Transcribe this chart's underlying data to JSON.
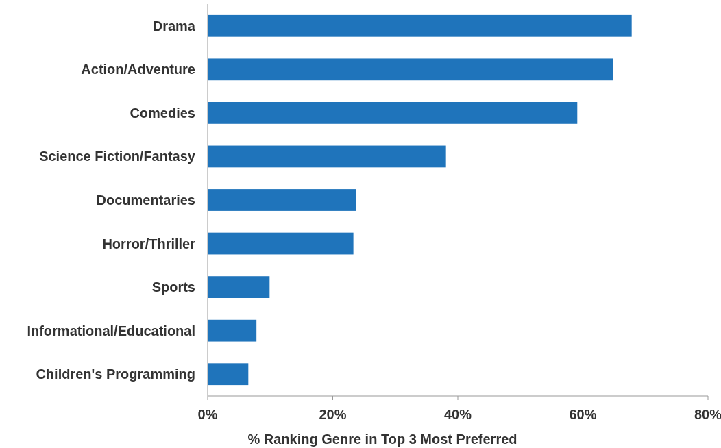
{
  "chart_data": {
    "type": "bar",
    "orientation": "horizontal",
    "xlabel": "% Ranking Genre in Top 3 Most Preferred",
    "categories": [
      "Drama",
      "Action/Adventure",
      "Comedies",
      "Science Fiction/Fantasy",
      "Documentaries",
      "Horror/Thriller",
      "Sports",
      "Informational/Educational",
      "Children's Programming"
    ],
    "values": [
      67.8,
      64.8,
      59.1,
      38.1,
      23.7,
      23.3,
      9.9,
      7.8,
      6.5
    ],
    "color": "#1f74bb",
    "xlim": [
      0,
      80
    ],
    "xticks": [
      {
        "value": 0,
        "label": "0%"
      },
      {
        "value": 20,
        "label": "20%"
      },
      {
        "value": 40,
        "label": "40%"
      },
      {
        "value": 60,
        "label": "60%"
      },
      {
        "value": 80,
        "label": "80%"
      }
    ],
    "grid": false
  }
}
